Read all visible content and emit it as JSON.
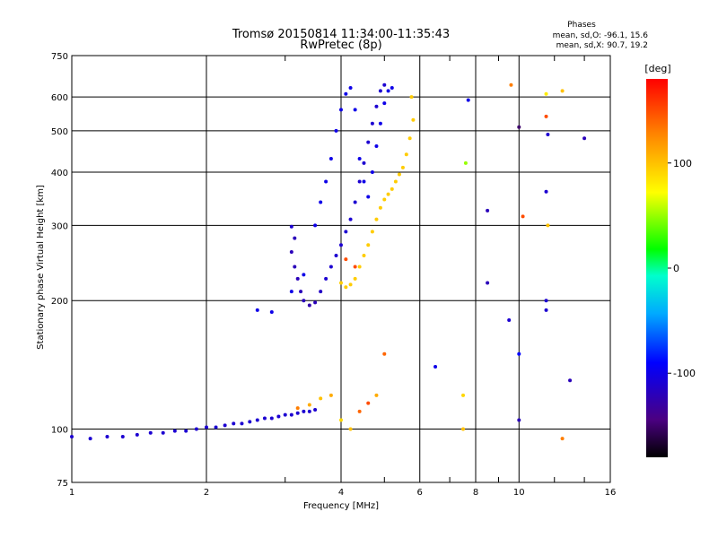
{
  "chart_data": {
    "type": "scatter",
    "title": "Tromsø 20150814 11:34:00-11:35:43",
    "subtitle": "RwPretec (8p)",
    "xlabel": "Frequency [MHz]",
    "ylabel": "Stationary phase Virtual Height [km]",
    "xscale": "log",
    "yscale": "log",
    "xlim": [
      1,
      16
    ],
    "ylim": [
      75,
      750
    ],
    "xticks": [
      1,
      2,
      4,
      6,
      8,
      10,
      16
    ],
    "xtick_labels": [
      "1",
      "2",
      "4",
      "6",
      "8",
      "10",
      "16"
    ],
    "yticks": [
      75,
      100,
      200,
      300,
      400,
      500,
      600,
      750
    ],
    "ytick_labels": [
      "75",
      "100",
      "200",
      "300",
      "400",
      "500",
      "600",
      "750"
    ],
    "grid": true,
    "stats": {
      "heading": "Phases",
      "line_o": "mean, sd,O: -96.1, 15.6",
      "line_x": "mean, sd,X:  90.7, 19.2"
    },
    "colorbar": {
      "label": "[deg]",
      "range": [
        -180,
        180
      ],
      "ticks": [
        100,
        0,
        -100
      ],
      "tick_labels": [
        "100",
        "0",
        "-100"
      ]
    },
    "series": [
      {
        "values": [
          [
            1.0,
            96,
            -110
          ],
          [
            1.1,
            95,
            -110
          ],
          [
            1.2,
            96,
            -110
          ],
          [
            1.3,
            96,
            -110
          ],
          [
            1.4,
            97,
            -110
          ],
          [
            1.5,
            98,
            -110
          ],
          [
            1.6,
            98,
            -110
          ],
          [
            1.7,
            99,
            -110
          ],
          [
            1.8,
            99,
            -110
          ],
          [
            1.9,
            100,
            -110
          ],
          [
            2.0,
            101,
            -110
          ],
          [
            2.1,
            101,
            -110
          ],
          [
            2.2,
            102,
            -110
          ],
          [
            2.3,
            103,
            -110
          ],
          [
            2.4,
            103,
            -110
          ],
          [
            2.5,
            104,
            -110
          ],
          [
            2.6,
            105,
            -110
          ],
          [
            2.7,
            106,
            -110
          ],
          [
            2.8,
            106,
            -110
          ],
          [
            2.9,
            107,
            -110
          ],
          [
            3.0,
            108,
            -110
          ],
          [
            3.1,
            108,
            -110
          ],
          [
            3.2,
            109,
            -110
          ],
          [
            3.3,
            110,
            -110
          ],
          [
            3.4,
            110,
            -110
          ],
          [
            3.5,
            111,
            -110
          ]
        ]
      },
      {
        "values": [
          [
            2.6,
            190,
            -100
          ],
          [
            2.8,
            188,
            -100
          ],
          [
            3.1,
            298,
            -110
          ],
          [
            3.15,
            280,
            -120
          ],
          [
            3.1,
            260,
            -120
          ],
          [
            3.15,
            240,
            -120
          ],
          [
            3.2,
            225,
            -120
          ],
          [
            3.25,
            210,
            -120
          ],
          [
            3.3,
            200,
            -120
          ],
          [
            3.4,
            195,
            -125
          ],
          [
            3.5,
            198,
            -120
          ],
          [
            3.6,
            210,
            -115
          ],
          [
            3.7,
            225,
            -110
          ],
          [
            3.8,
            240,
            -110
          ],
          [
            3.9,
            255,
            -110
          ],
          [
            4.0,
            270,
            -110
          ],
          [
            4.1,
            290,
            -110
          ],
          [
            4.2,
            310,
            -110
          ],
          [
            4.3,
            340,
            -110
          ],
          [
            4.4,
            380,
            -110
          ],
          [
            4.5,
            420,
            -110
          ],
          [
            4.6,
            470,
            -110
          ],
          [
            4.7,
            520,
            -110
          ],
          [
            4.8,
            570,
            -110
          ],
          [
            4.9,
            620,
            -110
          ],
          [
            5.0,
            640,
            -110
          ]
        ]
      },
      {
        "values": [
          [
            3.1,
            210,
            -100
          ],
          [
            3.3,
            230,
            -100
          ],
          [
            3.5,
            300,
            -100
          ],
          [
            3.6,
            340,
            -100
          ],
          [
            3.7,
            380,
            -100
          ],
          [
            3.8,
            430,
            -100
          ],
          [
            3.9,
            500,
            -100
          ],
          [
            4.0,
            560,
            -100
          ],
          [
            4.1,
            610,
            -100
          ],
          [
            4.2,
            630,
            -100
          ],
          [
            4.3,
            560,
            -100
          ],
          [
            4.4,
            430,
            -100
          ],
          [
            4.5,
            380,
            -100
          ],
          [
            4.6,
            350,
            -100
          ],
          [
            4.7,
            400,
            -100
          ],
          [
            4.8,
            460,
            -100
          ],
          [
            4.9,
            520,
            -100
          ],
          [
            5.0,
            580,
            -100
          ],
          [
            5.1,
            620,
            -100
          ],
          [
            5.2,
            630,
            -100
          ]
        ]
      },
      {
        "values": [
          [
            4.0,
            220,
            95
          ],
          [
            4.1,
            215,
            95
          ],
          [
            4.2,
            218,
            95
          ],
          [
            4.3,
            225,
            95
          ],
          [
            4.4,
            240,
            95
          ],
          [
            4.5,
            255,
            95
          ],
          [
            4.6,
            270,
            95
          ],
          [
            4.7,
            290,
            95
          ],
          [
            4.8,
            310,
            95
          ],
          [
            4.9,
            330,
            95
          ],
          [
            5.0,
            345,
            95
          ],
          [
            5.1,
            355,
            95
          ],
          [
            5.2,
            365,
            95
          ],
          [
            5.3,
            380,
            95
          ],
          [
            5.4,
            395,
            95
          ],
          [
            5.5,
            410,
            95
          ],
          [
            5.6,
            440,
            95
          ],
          [
            5.7,
            480,
            95
          ],
          [
            5.8,
            530,
            95
          ],
          [
            5.75,
            600,
            95
          ]
        ]
      },
      {
        "values": [
          [
            4.1,
            250,
            150
          ],
          [
            4.3,
            240,
            150
          ],
          [
            3.2,
            112,
            130
          ],
          [
            3.4,
            114,
            110
          ],
          [
            3.6,
            118,
            100
          ],
          [
            3.8,
            120,
            110
          ],
          [
            4.0,
            105,
            90
          ],
          [
            4.2,
            100,
            100
          ],
          [
            4.4,
            110,
            140
          ],
          [
            4.6,
            115,
            150
          ],
          [
            4.8,
            120,
            110
          ],
          [
            5.0,
            150,
            140
          ],
          [
            6.5,
            140,
            -100
          ],
          [
            7.5,
            120,
            90
          ],
          [
            7.5,
            100,
            100
          ],
          [
            7.6,
            420,
            50
          ],
          [
            7.7,
            590,
            -100
          ],
          [
            8.5,
            325,
            -120
          ],
          [
            8.5,
            220,
            -120
          ],
          [
            9.5,
            180,
            -110
          ],
          [
            9.6,
            640,
            130
          ],
          [
            10.0,
            510,
            -150
          ],
          [
            10.2,
            315,
            150
          ],
          [
            10.0,
            150,
            -90
          ],
          [
            10.0,
            105,
            -120
          ],
          [
            11.5,
            200,
            -110
          ],
          [
            11.5,
            190,
            -110
          ],
          [
            11.5,
            540,
            150
          ],
          [
            11.6,
            490,
            -110
          ],
          [
            11.5,
            360,
            -110
          ],
          [
            11.6,
            300,
            100
          ],
          [
            11.5,
            610,
            80
          ],
          [
            12.5,
            620,
            100
          ],
          [
            12.5,
            95,
            130
          ],
          [
            13.0,
            130,
            -120
          ],
          [
            14.0,
            480,
            -120
          ]
        ]
      }
    ]
  }
}
